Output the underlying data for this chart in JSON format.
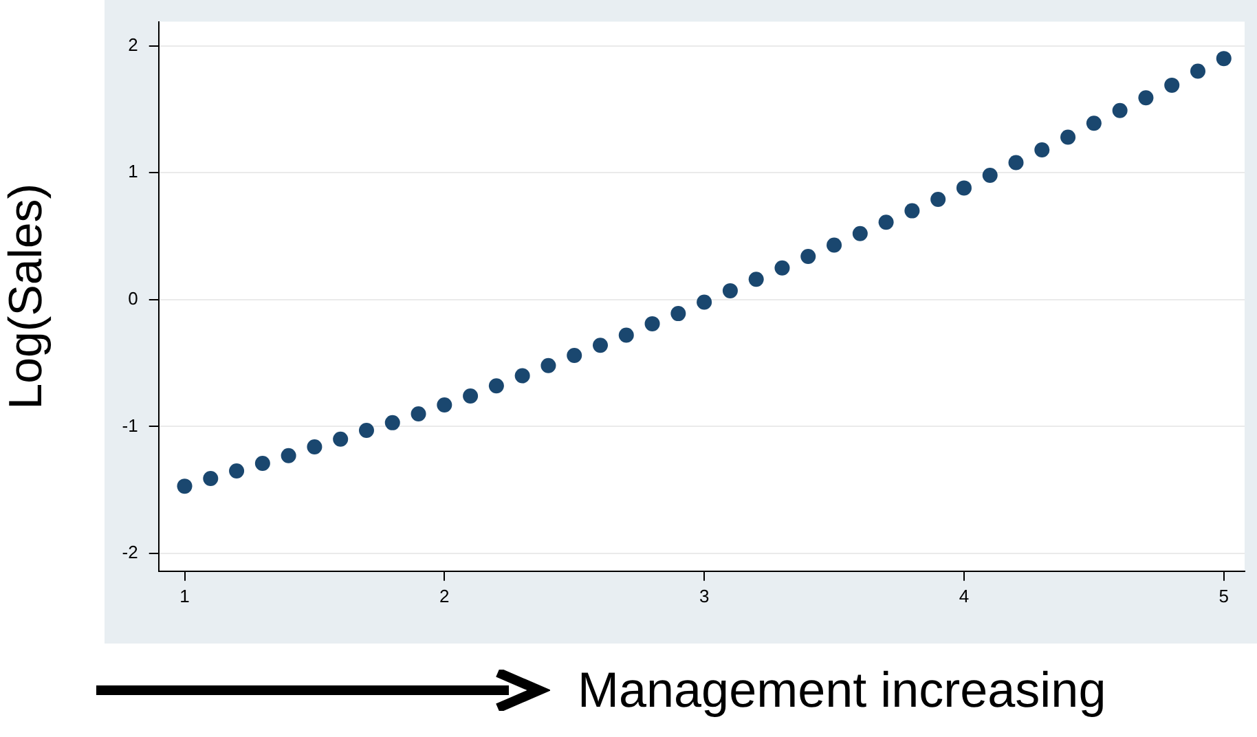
{
  "chart_data": {
    "type": "scatter",
    "ylabel": "Log(Sales)",
    "annotations": [
      "Management increasing"
    ],
    "x": [
      1,
      1.1,
      1.2,
      1.3,
      1.4,
      1.5,
      1.6,
      1.7,
      1.8,
      1.9,
      2,
      2.1,
      2.2,
      2.3,
      2.4,
      2.5,
      2.6,
      2.7,
      2.8,
      2.9,
      3,
      3.1,
      3.2,
      3.3,
      3.4,
      3.5,
      3.6,
      3.7,
      3.8,
      3.9,
      4,
      4.1,
      4.2,
      4.3,
      4.4,
      4.5,
      4.6,
      4.7,
      4.8,
      4.9,
      5
    ],
    "series": [
      {
        "color": "#1a476f",
        "values": [
          -1.47,
          -1.41,
          -1.35,
          -1.29,
          -1.23,
          -1.16,
          -1.1,
          -1.03,
          -0.97,
          -0.9,
          -0.83,
          -0.76,
          -0.68,
          -0.6,
          -0.52,
          -0.44,
          -0.36,
          -0.28,
          -0.19,
          -0.11,
          -0.02,
          0.07,
          0.16,
          0.25,
          0.34,
          0.43,
          0.52,
          0.61,
          0.7,
          0.79,
          0.88,
          0.98,
          1.08,
          1.18,
          1.28,
          1.39,
          1.49,
          1.59,
          1.69,
          1.8,
          1.9
        ]
      }
    ],
    "xlim": [
      0.9,
      5.08
    ],
    "xticks": [
      1,
      2,
      3,
      4,
      5
    ],
    "ylim": [
      -2.14,
      2.19
    ],
    "yticks": [
      -2,
      -1,
      0,
      1,
      2
    ],
    "grid": "y",
    "marker": "circle",
    "legend": false
  }
}
